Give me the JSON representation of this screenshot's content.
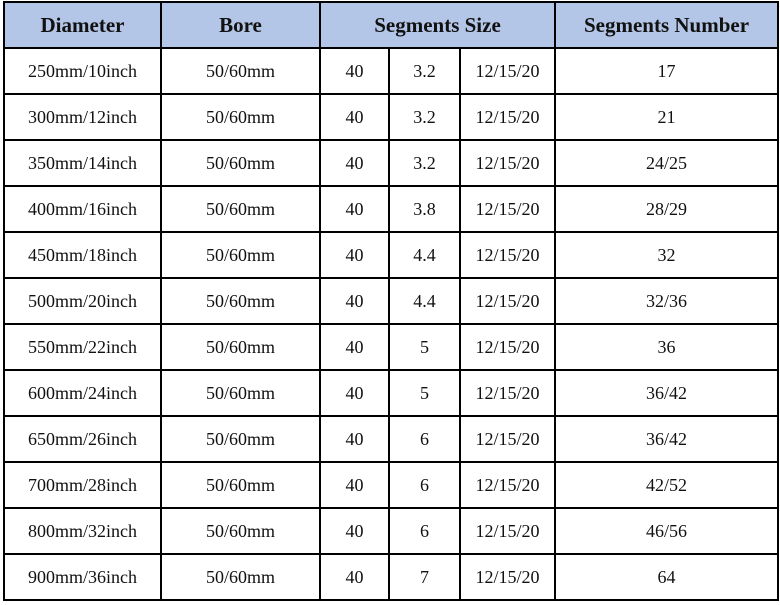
{
  "header": {
    "diameter": "Diameter",
    "bore": "Bore",
    "segments_size": "Segments Size",
    "segments_number": "Segments Number"
  },
  "header_bg": "#b4c6e7",
  "rows": [
    {
      "diameter": "250mm/10inch",
      "bore": "50/60mm",
      "len": "40",
      "width": "3.2",
      "height": "12/15/20",
      "number": "17"
    },
    {
      "diameter": "300mm/12inch",
      "bore": "50/60mm",
      "len": "40",
      "width": "3.2",
      "height": "12/15/20",
      "number": "21"
    },
    {
      "diameter": "350mm/14inch",
      "bore": "50/60mm",
      "len": "40",
      "width": "3.2",
      "height": "12/15/20",
      "number": "24/25"
    },
    {
      "diameter": "400mm/16inch",
      "bore": "50/60mm",
      "len": "40",
      "width": "3.8",
      "height": "12/15/20",
      "number": "28/29"
    },
    {
      "diameter": "450mm/18inch",
      "bore": "50/60mm",
      "len": "40",
      "width": "4.4",
      "height": "12/15/20",
      "number": "32"
    },
    {
      "diameter": "500mm/20inch",
      "bore": "50/60mm",
      "len": "40",
      "width": "4.4",
      "height": "12/15/20",
      "number": "32/36"
    },
    {
      "diameter": "550mm/22inch",
      "bore": "50/60mm",
      "len": "40",
      "width": "5",
      "height": "12/15/20",
      "number": "36"
    },
    {
      "diameter": "600mm/24inch",
      "bore": "50/60mm",
      "len": "40",
      "width": "5",
      "height": "12/15/20",
      "number": "36/42"
    },
    {
      "diameter": "650mm/26inch",
      "bore": "50/60mm",
      "len": "40",
      "width": "6",
      "height": "12/15/20",
      "number": "36/42"
    },
    {
      "diameter": "700mm/28inch",
      "bore": "50/60mm",
      "len": "40",
      "width": "6",
      "height": "12/15/20",
      "number": "42/52"
    },
    {
      "diameter": "800mm/32inch",
      "bore": "50/60mm",
      "len": "40",
      "width": "6",
      "height": "12/15/20",
      "number": "46/56"
    },
    {
      "diameter": "900mm/36inch",
      "bore": "50/60mm",
      "len": "40",
      "width": "7",
      "height": "12/15/20",
      "number": "64"
    }
  ]
}
